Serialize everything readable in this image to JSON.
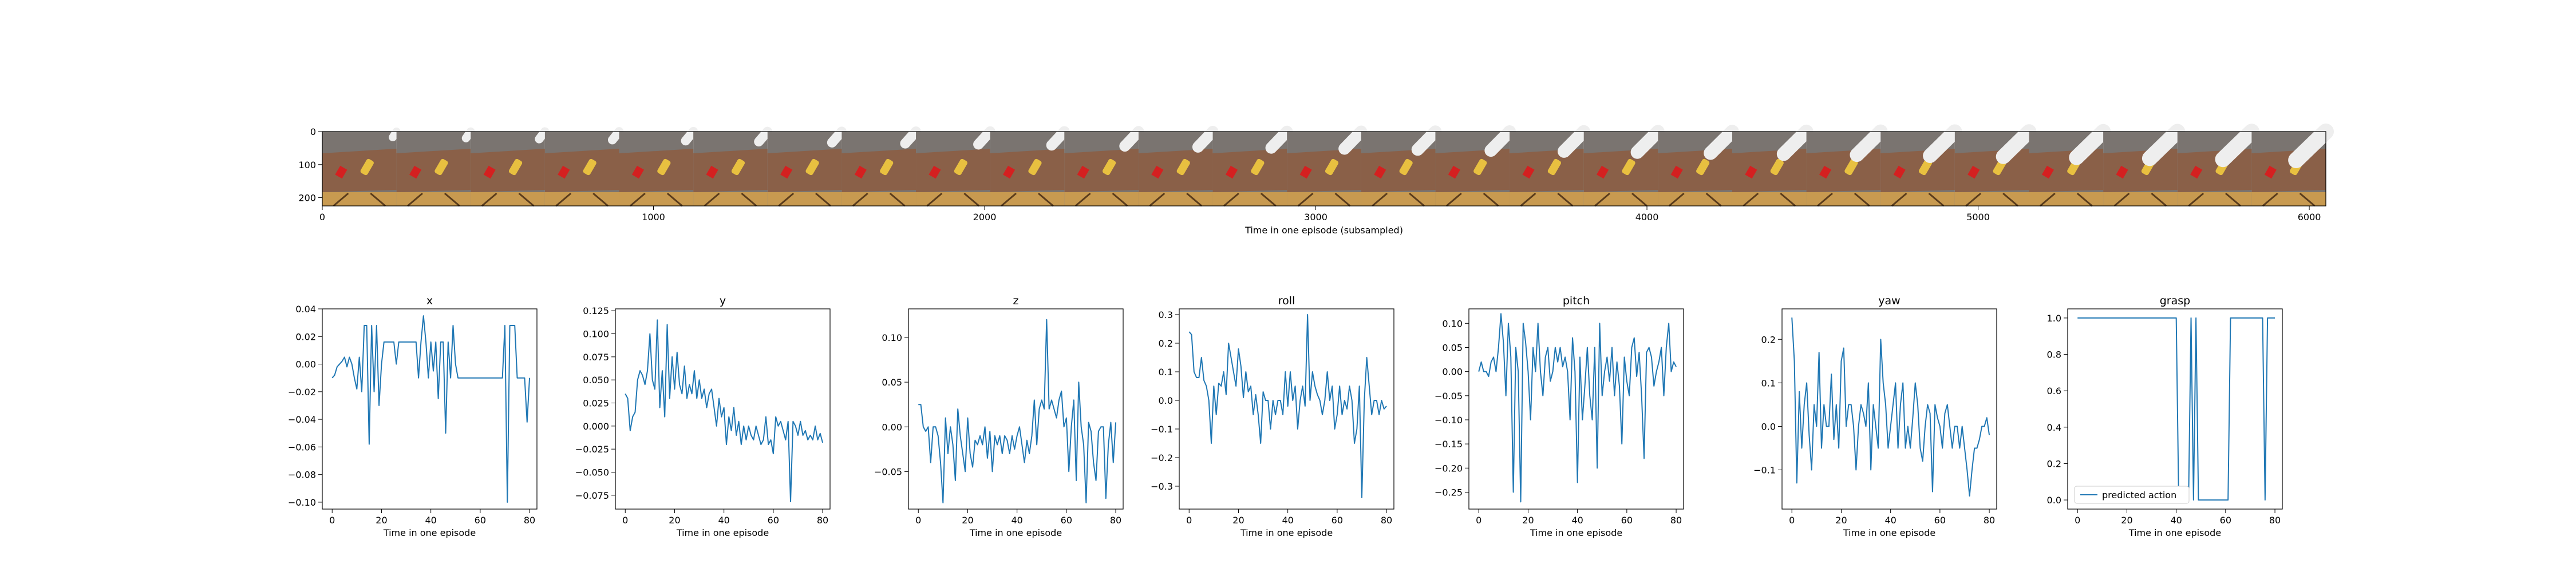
{
  "figure": {
    "filmstrip": {
      "xlabel": "Time in one episode (subsampled)",
      "x_ticks": [
        "0",
        "1000",
        "2000",
        "3000",
        "4000",
        "5000",
        "6000"
      ],
      "y_ticks": [
        "0",
        "100",
        "200"
      ],
      "frame_count": 27,
      "colors": {
        "wall": "#7a7470",
        "wood": "#8a6048",
        "table": "#c89a50",
        "arm": "#eeeeee",
        "red": "#d42020",
        "yellow": "#e8c040"
      }
    }
  },
  "chart_data": [
    {
      "type": "line",
      "title": "x",
      "xlabel": "Time in one episode",
      "xlim": [
        -4,
        83
      ],
      "ylim": [
        -0.105,
        0.04
      ],
      "x_ticks": [
        0,
        20,
        40,
        60,
        80
      ],
      "x_tick_labels": [
        "0",
        "20",
        "40",
        "60",
        "80"
      ],
      "y_ticks": [
        -0.1,
        -0.08,
        -0.06,
        -0.04,
        -0.02,
        0.0,
        0.02,
        0.04
      ],
      "y_tick_labels": [
        "−0.10",
        "−0.08",
        "−0.06",
        "−0.04",
        "−0.02",
        "0.00",
        "0.02",
        "0.04"
      ],
      "values": [
        -0.01,
        -0.008,
        -0.002,
        0.0,
        0.002,
        0.005,
        -0.002,
        0.005,
        0.0,
        -0.01,
        -0.018,
        0.005,
        -0.02,
        0.028,
        0.028,
        -0.058,
        0.028,
        -0.02,
        0.028,
        -0.03,
        0.0,
        0.016,
        0.016,
        0.016,
        0.016,
        0.016,
        0.0,
        0.016,
        0.016,
        0.016,
        0.016,
        0.016,
        0.016,
        0.016,
        0.016,
        -0.01,
        0.016,
        0.035,
        0.016,
        -0.01,
        0.016,
        -0.005,
        0.016,
        -0.025,
        0.016,
        0.016,
        -0.05,
        0.016,
        -0.01,
        0.028,
        0.0,
        -0.01,
        -0.01,
        -0.01,
        -0.01,
        -0.01,
        -0.01,
        -0.01,
        -0.01,
        -0.01,
        -0.01,
        -0.01,
        -0.01,
        -0.01,
        -0.01,
        -0.01,
        -0.01,
        -0.01,
        -0.01,
        -0.01,
        0.028,
        -0.1,
        0.028,
        0.028,
        0.028,
        -0.01,
        -0.01,
        -0.01,
        -0.01,
        -0.042,
        -0.01
      ]
    },
    {
      "type": "line",
      "title": "y",
      "xlabel": "Time in one episode",
      "xlim": [
        -4,
        83
      ],
      "ylim": [
        -0.09,
        0.127
      ],
      "x_ticks": [
        0,
        20,
        40,
        60,
        80
      ],
      "x_tick_labels": [
        "0",
        "20",
        "40",
        "60",
        "80"
      ],
      "y_ticks": [
        -0.075,
        -0.05,
        -0.025,
        0.0,
        0.025,
        0.05,
        0.075,
        0.1,
        0.125
      ],
      "y_tick_labels": [
        "−0.075",
        "−0.050",
        "−0.025",
        "0.000",
        "0.025",
        "0.050",
        "0.075",
        "0.100",
        "0.125"
      ],
      "values": [
        0.035,
        0.03,
        -0.005,
        0.01,
        0.015,
        0.05,
        0.06,
        0.055,
        0.045,
        0.06,
        0.1,
        0.05,
        0.04,
        0.115,
        0.02,
        0.06,
        0.01,
        0.11,
        0.03,
        0.075,
        0.04,
        0.08,
        0.045,
        0.035,
        0.065,
        0.03,
        0.045,
        0.035,
        0.06,
        0.03,
        0.05,
        0.03,
        0.04,
        0.02,
        0.035,
        0.04,
        0.02,
        0.0,
        0.03,
        0.01,
        0.02,
        -0.02,
        0.01,
        -0.005,
        0.02,
        -0.01,
        0.005,
        -0.02,
        0.0,
        -0.015,
        0.0,
        -0.01,
        -0.015,
        0.0,
        -0.01,
        -0.02,
        -0.015,
        0.01,
        -0.02,
        -0.015,
        -0.03,
        0.01,
        0.0,
        0.005,
        -0.005,
        -0.015,
        0.005,
        -0.082,
        0.005,
        0.0,
        -0.01,
        0.005,
        -0.01,
        -0.005,
        -0.015,
        -0.01,
        -0.015,
        0.0,
        -0.015,
        -0.008,
        -0.018
      ]
    },
    {
      "type": "line",
      "title": "z",
      "xlabel": "Time in one episode",
      "xlim": [
        -4,
        83
      ],
      "ylim": [
        -0.092,
        0.132
      ],
      "x_ticks": [
        0,
        20,
        40,
        60,
        80
      ],
      "x_tick_labels": [
        "0",
        "20",
        "40",
        "60",
        "80"
      ],
      "y_ticks": [
        -0.05,
        0.0,
        0.05,
        0.1
      ],
      "y_tick_labels": [
        "−0.05",
        "0.00",
        "0.05",
        "0.10"
      ],
      "values": [
        0.025,
        0.025,
        0.0,
        -0.005,
        0.0,
        -0.04,
        0.0,
        0.0,
        -0.01,
        -0.04,
        -0.085,
        0.01,
        -0.03,
        0.0,
        -0.02,
        -0.06,
        0.02,
        -0.01,
        -0.03,
        -0.05,
        0.01,
        -0.03,
        -0.045,
        -0.015,
        -0.02,
        -0.01,
        -0.02,
        0.0,
        -0.035,
        -0.005,
        -0.05,
        -0.01,
        -0.02,
        -0.01,
        -0.03,
        -0.01,
        -0.015,
        -0.03,
        -0.01,
        -0.025,
        -0.01,
        0.0,
        -0.02,
        -0.04,
        -0.015,
        -0.03,
        -0.01,
        0.03,
        -0.02,
        0.02,
        0.03,
        0.02,
        0.12,
        0.02,
        0.03,
        0.02,
        0.01,
        0.03,
        0.04,
        0.0,
        0.01,
        -0.05,
        0.0,
        0.03,
        -0.06,
        0.05,
        0.0,
        -0.02,
        -0.085,
        0.005,
        -0.005,
        -0.04,
        -0.06,
        -0.005,
        0.0,
        0.0,
        -0.08,
        -0.02,
        0.005,
        -0.04,
        0.005
      ]
    },
    {
      "type": "line",
      "title": "roll",
      "xlabel": "Time in one episode",
      "xlim": [
        -4,
        83
      ],
      "ylim": [
        -0.38,
        0.32
      ],
      "x_ticks": [
        0,
        20,
        40,
        60,
        80
      ],
      "x_tick_labels": [
        "0",
        "20",
        "40",
        "60",
        "80"
      ],
      "y_ticks": [
        -0.3,
        -0.2,
        -0.1,
        0.0,
        0.1,
        0.2,
        0.3
      ],
      "y_tick_labels": [
        "−0.3",
        "−0.2",
        "−0.1",
        "0.0",
        "0.1",
        "0.2",
        "0.3"
      ],
      "values": [
        0.24,
        0.23,
        0.1,
        0.08,
        0.08,
        0.15,
        0.07,
        0.05,
        0.0,
        -0.15,
        0.05,
        -0.05,
        0.06,
        0.05,
        0.1,
        0.02,
        0.2,
        0.15,
        0.1,
        0.05,
        0.18,
        0.12,
        0.01,
        0.1,
        0.03,
        0.05,
        -0.05,
        0.02,
        -0.05,
        -0.15,
        0.03,
        0.0,
        0.0,
        -0.1,
        0.0,
        -0.05,
        0.0,
        0.0,
        -0.05,
        0.1,
        -0.02,
        0.1,
        0.0,
        0.05,
        -0.1,
        0.0,
        0.05,
        -0.02,
        0.3,
        0.0,
        0.1,
        0.05,
        0.02,
        0.0,
        -0.05,
        0.0,
        0.1,
        0.0,
        0.05,
        -0.1,
        -0.05,
        0.05,
        -0.05,
        0.0,
        -0.03,
        0.05,
        0.0,
        -0.15,
        -0.1,
        0.05,
        -0.34,
        0.0,
        0.15,
        0.05,
        -0.05,
        0.0,
        0.0,
        -0.05,
        0.0,
        -0.03,
        -0.02
      ]
    },
    {
      "type": "line",
      "title": "pitch",
      "xlabel": "Time in one episode",
      "xlim": [
        -4,
        83
      ],
      "ylim": [
        -0.285,
        0.13
      ],
      "x_ticks": [
        0,
        20,
        40,
        60,
        80
      ],
      "x_tick_labels": [
        "0",
        "20",
        "40",
        "60",
        "80"
      ],
      "y_ticks": [
        -0.25,
        -0.2,
        -0.15,
        -0.1,
        -0.05,
        0.0,
        0.05,
        0.1
      ],
      "y_tick_labels": [
        "−0.25",
        "−0.20",
        "−0.15",
        "−0.10",
        "−0.05",
        "0.00",
        "0.05",
        "0.10"
      ],
      "values": [
        0.0,
        0.02,
        0.0,
        0.0,
        -0.01,
        0.02,
        0.03,
        0.0,
        0.05,
        0.12,
        0.06,
        -0.05,
        0.1,
        0.03,
        -0.25,
        0.05,
        0.0,
        -0.27,
        0.1,
        0.06,
        0.0,
        -0.1,
        0.05,
        0.0,
        0.1,
        0.0,
        -0.05,
        0.03,
        0.05,
        -0.02,
        0.0,
        0.05,
        0.02,
        0.05,
        0.01,
        0.03,
        0.0,
        -0.1,
        0.07,
        0.0,
        -0.23,
        0.03,
        -0.1,
        -0.03,
        0.05,
        -0.05,
        -0.1,
        0.05,
        -0.2,
        0.1,
        -0.05,
        0.0,
        0.03,
        -0.02,
        0.05,
        -0.05,
        0.02,
        -0.03,
        -0.15,
        0.03,
        -0.02,
        -0.05,
        0.05,
        0.07,
        -0.01,
        0.04,
        -0.05,
        -0.18,
        0.04,
        0.05,
        0.03,
        -0.03,
        0.0,
        0.02,
        0.05,
        -0.05,
        0.05,
        0.1,
        0.0,
        0.02,
        0.01
      ]
    },
    {
      "type": "line",
      "title": "yaw",
      "xlabel": "Time in one episode",
      "xlim": [
        -4,
        83
      ],
      "ylim": [
        -0.19,
        0.27
      ],
      "x_ticks": [
        0,
        20,
        40,
        60,
        80
      ],
      "x_tick_labels": [
        "0",
        "20",
        "40",
        "60",
        "80"
      ],
      "y_ticks": [
        -0.1,
        0.0,
        0.1,
        0.2
      ],
      "y_tick_labels": [
        "−0.1",
        "0.0",
        "0.1",
        "0.2"
      ],
      "values": [
        0.25,
        0.15,
        -0.13,
        0.08,
        -0.05,
        0.05,
        0.1,
        -0.02,
        -0.1,
        0.05,
        0.0,
        0.17,
        -0.05,
        0.05,
        0.0,
        0.0,
        0.12,
        -0.03,
        0.05,
        -0.05,
        0.15,
        0.18,
        0.0,
        0.05,
        0.05,
        0.0,
        -0.1,
        0.0,
        0.05,
        0.03,
        0.0,
        0.1,
        -0.1,
        0.05,
        0.0,
        -0.05,
        0.2,
        0.1,
        0.05,
        -0.05,
        0.0,
        0.05,
        0.1,
        -0.05,
        0.05,
        0.1,
        -0.05,
        0.0,
        -0.05,
        0.02,
        0.1,
        0.05,
        -0.05,
        -0.08,
        0.0,
        0.05,
        0.03,
        -0.15,
        0.05,
        0.02,
        0.0,
        -0.05,
        0.03,
        0.05,
        0.0,
        -0.05,
        0.0,
        0.0,
        -0.05,
        0.0,
        -0.05,
        -0.1,
        -0.16,
        -0.1,
        -0.05,
        -0.05,
        -0.03,
        0.0,
        0.0,
        0.02,
        -0.02
      ]
    },
    {
      "type": "line",
      "title": "grasp",
      "xlabel": "Time in one episode",
      "xlim": [
        -4,
        83
      ],
      "ylim": [
        -0.05,
        1.05
      ],
      "x_ticks": [
        0,
        20,
        40,
        60,
        80
      ],
      "x_tick_labels": [
        "0",
        "20",
        "40",
        "60",
        "80"
      ],
      "y_ticks": [
        0.0,
        0.2,
        0.4,
        0.6,
        0.8,
        1.0
      ],
      "y_tick_labels": [
        "0.0",
        "0.2",
        "0.4",
        "0.6",
        "0.8",
        "1.0"
      ],
      "legend": "predicted action",
      "values": [
        1,
        1,
        1,
        1,
        1,
        1,
        1,
        1,
        1,
        1,
        1,
        1,
        1,
        1,
        1,
        1,
        1,
        1,
        1,
        1,
        1,
        1,
        1,
        1,
        1,
        1,
        1,
        1,
        1,
        1,
        1,
        1,
        1,
        1,
        1,
        1,
        1,
        1,
        1,
        1,
        1,
        0,
        0,
        0,
        0,
        0,
        1,
        0,
        1,
        0,
        0,
        0,
        0,
        0,
        0,
        0,
        0,
        0,
        0,
        0,
        0,
        0,
        1,
        1,
        1,
        1,
        1,
        1,
        1,
        1,
        1,
        1,
        1,
        1,
        1,
        1,
        0,
        1,
        1,
        1,
        1
      ]
    }
  ]
}
